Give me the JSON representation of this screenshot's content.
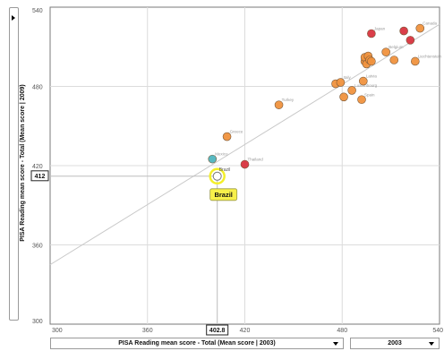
{
  "panel": {
    "toggle": "▸"
  },
  "selectors": {
    "x_measure": "PISA Reading mean score - Total  (Mean score | 2003)",
    "x_year": "2003"
  },
  "tooltip": {
    "label": "Brazil"
  },
  "crosshair": {
    "x_value": "402.8",
    "y_value": "412"
  },
  "chart_data": {
    "type": "scatter",
    "xlabel": "PISA Reading mean score - Total  (Mean score | 2003)",
    "ylabel": "PISA Reading mean score - Total (Mean score | 2009)",
    "xlim": [
      300,
      540
    ],
    "ylim": [
      300,
      540
    ],
    "x_ticks": [
      300,
      360,
      420,
      480,
      540
    ],
    "x_tick_labels": [
      "300",
      "360",
      "420",
      "480",
      "540"
    ],
    "y_ticks": [
      300,
      360,
      420,
      480,
      540
    ],
    "y_tick_labels": [
      "300",
      "360",
      "420",
      "480",
      "540"
    ],
    "grid": true,
    "trendline": {
      "x": [
        300,
        540
      ],
      "y": [
        345,
        527
      ]
    },
    "colors": {
      "orange": "#f0923e",
      "red": "#d8343f",
      "teal": "#4fb5bf",
      "highlight": "#f4ef2a"
    },
    "points": [
      {
        "label": "Brazil",
        "x": 403,
        "y": 412,
        "color": "highlight",
        "selected": true
      },
      {
        "label": "Mexico",
        "x": 400,
        "y": 425,
        "color": "teal"
      },
      {
        "label": "Thailand",
        "x": 420,
        "y": 421,
        "color": "red"
      },
      {
        "label": "Greece",
        "x": 409,
        "y": 442,
        "color": "orange"
      },
      {
        "label": "Turkey",
        "x": 441,
        "y": 466,
        "color": "orange"
      },
      {
        "label": "",
        "x": 476,
        "y": 482,
        "color": "orange"
      },
      {
        "label": "Italy",
        "x": 479,
        "y": 483,
        "color": "orange"
      },
      {
        "label": "",
        "x": 481,
        "y": 472,
        "color": "orange"
      },
      {
        "label": "Luxembourg",
        "x": 486,
        "y": 477,
        "color": "orange"
      },
      {
        "label": "Spain",
        "x": 492,
        "y": 470,
        "color": "orange"
      },
      {
        "label": "Latvia",
        "x": 493,
        "y": 484,
        "color": "orange"
      },
      {
        "label": "",
        "x": 494,
        "y": 499,
        "color": "orange"
      },
      {
        "label": "",
        "x": 494,
        "y": 502,
        "color": "orange"
      },
      {
        "label": "",
        "x": 495,
        "y": 497,
        "color": "orange"
      },
      {
        "label": "",
        "x": 496,
        "y": 503,
        "color": "orange"
      },
      {
        "label": "",
        "x": 497,
        "y": 500,
        "color": "orange"
      },
      {
        "label": "",
        "x": 498,
        "y": 499,
        "color": "orange"
      },
      {
        "label": "Japan",
        "x": 498,
        "y": 520,
        "color": "red"
      },
      {
        "label": "Belgium",
        "x": 507,
        "y": 506,
        "color": "orange"
      },
      {
        "label": "",
        "x": 512,
        "y": 500,
        "color": "orange"
      },
      {
        "label": "Liechtenstein",
        "x": 525,
        "y": 499,
        "color": "orange"
      },
      {
        "label": "",
        "x": 518,
        "y": 522,
        "color": "red"
      },
      {
        "label": "",
        "x": 522,
        "y": 515,
        "color": "red"
      },
      {
        "label": "Canada",
        "x": 528,
        "y": 524,
        "color": "orange"
      }
    ]
  }
}
